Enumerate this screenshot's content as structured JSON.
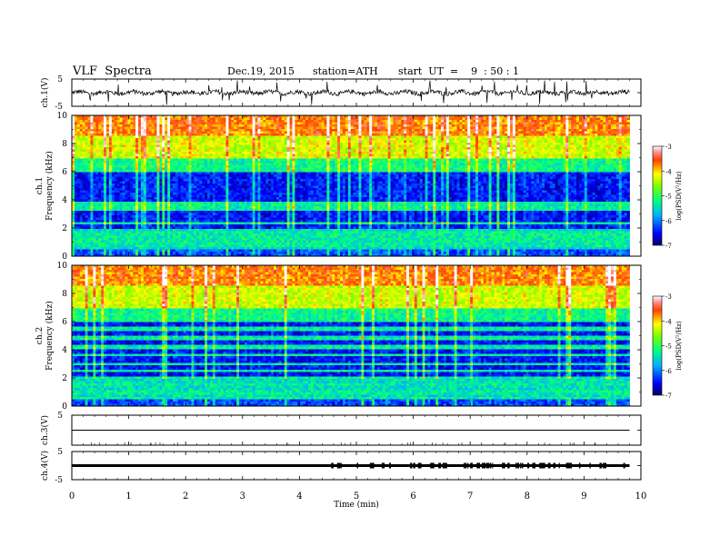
{
  "header": {
    "title": "VLF  Spectra",
    "date": "Dec.19, 2015",
    "station": "station=ATH",
    "start": "start  UT  =    9  : 50 : 1"
  },
  "chart_data": [
    {
      "type": "line",
      "panel": "ch1-waveform",
      "ylabel": "ch.1(V)",
      "yticks": [
        "5",
        "-5"
      ],
      "ylim": [
        -5,
        5
      ],
      "xlim": [
        0,
        10
      ],
      "description_level": 0
    },
    {
      "type": "heatmap",
      "panel": "ch1-spectrogram",
      "ylabel": "ch.1\nFrequency  (kHz)",
      "ylabel_top": "ch.1",
      "ylabel_bottom": "Frequency  (kHz)",
      "ylim": [
        0,
        10
      ],
      "yticks": [
        "10",
        "8",
        "6",
        "4",
        "2",
        "0"
      ],
      "xlim": [
        0,
        10
      ],
      "colorbar": {
        "label": "log(PSD(V²/Hz)",
        "ticks": [
          "-3",
          "-4",
          "-5",
          "-6",
          "-7"
        ],
        "range": [
          -7,
          -3
        ]
      }
    },
    {
      "type": "heatmap",
      "panel": "ch2-spectrogram",
      "ylabel_top": "ch.2",
      "ylabel_bottom": "Frequency  (kHz)",
      "ylim": [
        0,
        10
      ],
      "yticks": [
        "10",
        "8",
        "6",
        "4",
        "2",
        "0"
      ],
      "xlim": [
        0,
        10
      ],
      "colorbar": {
        "label": "log(PSD(V²/Hz)",
        "ticks": [
          "-3",
          "-4",
          "-5",
          "-6",
          "-7"
        ],
        "range": [
          -7,
          -3
        ]
      }
    },
    {
      "type": "line",
      "panel": "ch3-waveform",
      "ylabel": "ch.3(V)",
      "yticks": [
        "5",
        ""
      ],
      "ylim": [
        -5,
        5
      ],
      "xlim": [
        0,
        10
      ]
    },
    {
      "type": "line",
      "panel": "ch4-waveform",
      "ylabel": "ch.4(V)",
      "yticks": [
        "5",
        "-5"
      ],
      "ylim": [
        -5,
        5
      ],
      "xlim": [
        0,
        10
      ]
    }
  ],
  "xaxis": {
    "label": "Time  (min)",
    "ticks": [
      "0",
      "1",
      "2",
      "3",
      "4",
      "5",
      "6",
      "7",
      "8",
      "9",
      "10"
    ],
    "range": [
      0,
      10
    ],
    "data_end": 9.8
  },
  "colors": {
    "trace": "#000000",
    "frame": "#000000"
  }
}
